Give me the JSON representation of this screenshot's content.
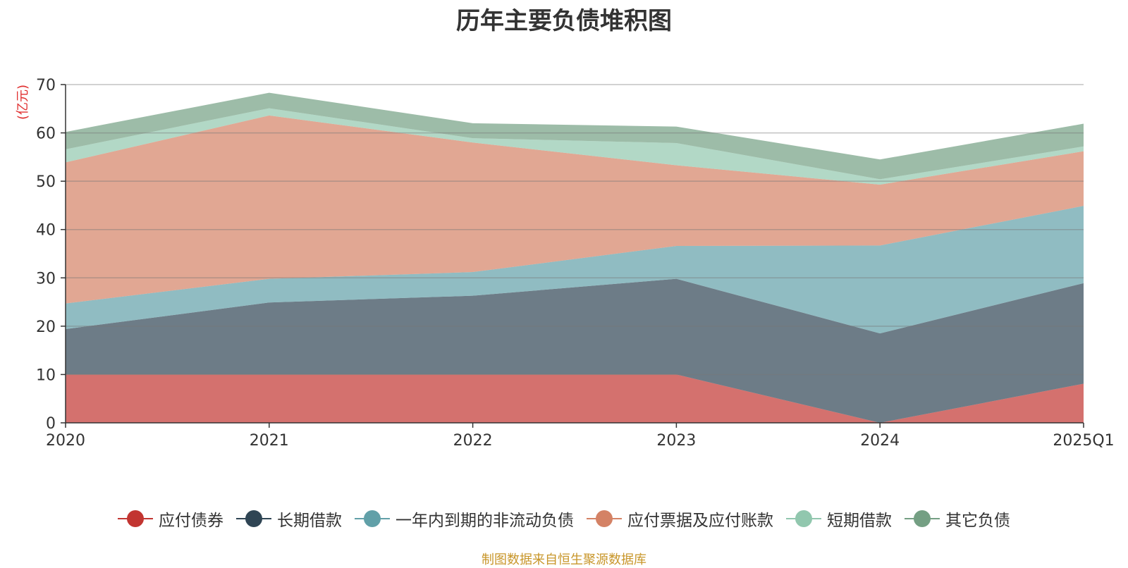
{
  "chart_data": {
    "type": "area",
    "stacked": true,
    "title": "历年主要负债堆积图",
    "ylabel": "(亿元)",
    "categories": [
      "2020",
      "2021",
      "2022",
      "2023",
      "2024",
      "2025Q1"
    ],
    "ylim": [
      0,
      70
    ],
    "yticks": [
      "0",
      "10",
      "20",
      "30",
      "40",
      "50",
      "60",
      "70"
    ],
    "grid": true,
    "legend_position": "bottom",
    "series": [
      {
        "name": "应付债券",
        "color": "#c23531",
        "values": [
          10,
          10,
          10,
          10,
          0,
          8.1
        ]
      },
      {
        "name": "长期借款",
        "color": "#2f4554",
        "values": [
          9.4,
          14.9,
          16.3,
          19.8,
          18.5,
          20.8
        ]
      },
      {
        "name": "一年内到期的非流动负债",
        "color": "#61a0a8",
        "values": [
          5.3,
          4.9,
          4.9,
          6.8,
          18.2,
          16.0
        ]
      },
      {
        "name": "应付票据及应付账款",
        "color": "#d48265",
        "values": [
          29.2,
          33.8,
          26.8,
          16.7,
          12.6,
          11.3
        ]
      },
      {
        "name": "短期借款",
        "color": "#91c7ae",
        "values": [
          2.7,
          1.5,
          0.9,
          4.6,
          1.1,
          1.0
        ]
      },
      {
        "name": "其它负债",
        "color": "#749f83",
        "values": [
          3.6,
          3.2,
          3.1,
          3.4,
          4.1,
          4.7
        ]
      }
    ]
  },
  "footer": "制图数据来自恒生聚源数据库"
}
